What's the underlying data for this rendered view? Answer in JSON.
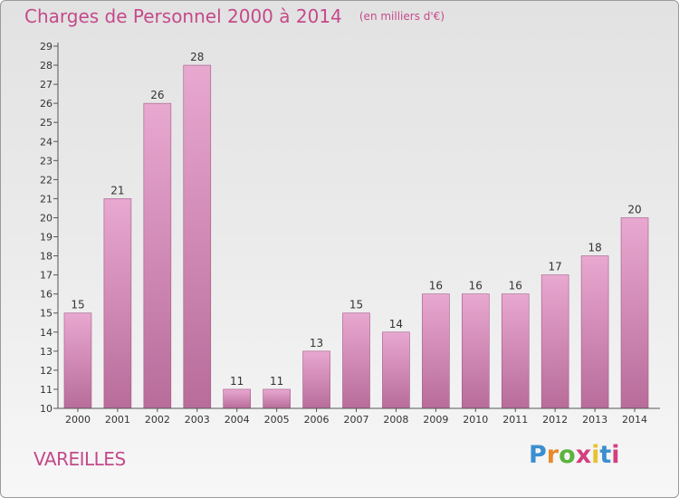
{
  "page": {
    "place": "VAREILLES",
    "logo_text": "Proxiti",
    "logo_colors": [
      "#3a8fd0",
      "#e8892b",
      "#5bb33e",
      "#d33f7e",
      "#e8c230",
      "#3a8fd0",
      "#d33f7e"
    ]
  },
  "chart_data": {
    "type": "bar",
    "title": "Charges de Personnel 2000 à 2014",
    "subtitle": "(en milliers d'€)",
    "xlabel": "",
    "ylabel": "",
    "categories": [
      "2000",
      "2001",
      "2002",
      "2003",
      "2004",
      "2005",
      "2006",
      "2007",
      "2008",
      "2009",
      "2010",
      "2011",
      "2012",
      "2013",
      "2014"
    ],
    "values": [
      15,
      21,
      26,
      28,
      11,
      11,
      13,
      15,
      14,
      16,
      16,
      16,
      17,
      18,
      20
    ],
    "ylim": [
      10,
      29
    ],
    "yticks": [
      10,
      11,
      12,
      13,
      14,
      15,
      16,
      17,
      18,
      19,
      20,
      21,
      22,
      23,
      24,
      25,
      26,
      27,
      28,
      29
    ],
    "grid": false,
    "colors": {
      "bar_top": "#e8a8d0",
      "bar_bottom": "#b86c9a",
      "bar_edge": "#a05a86",
      "axis": "#555555"
    }
  }
}
